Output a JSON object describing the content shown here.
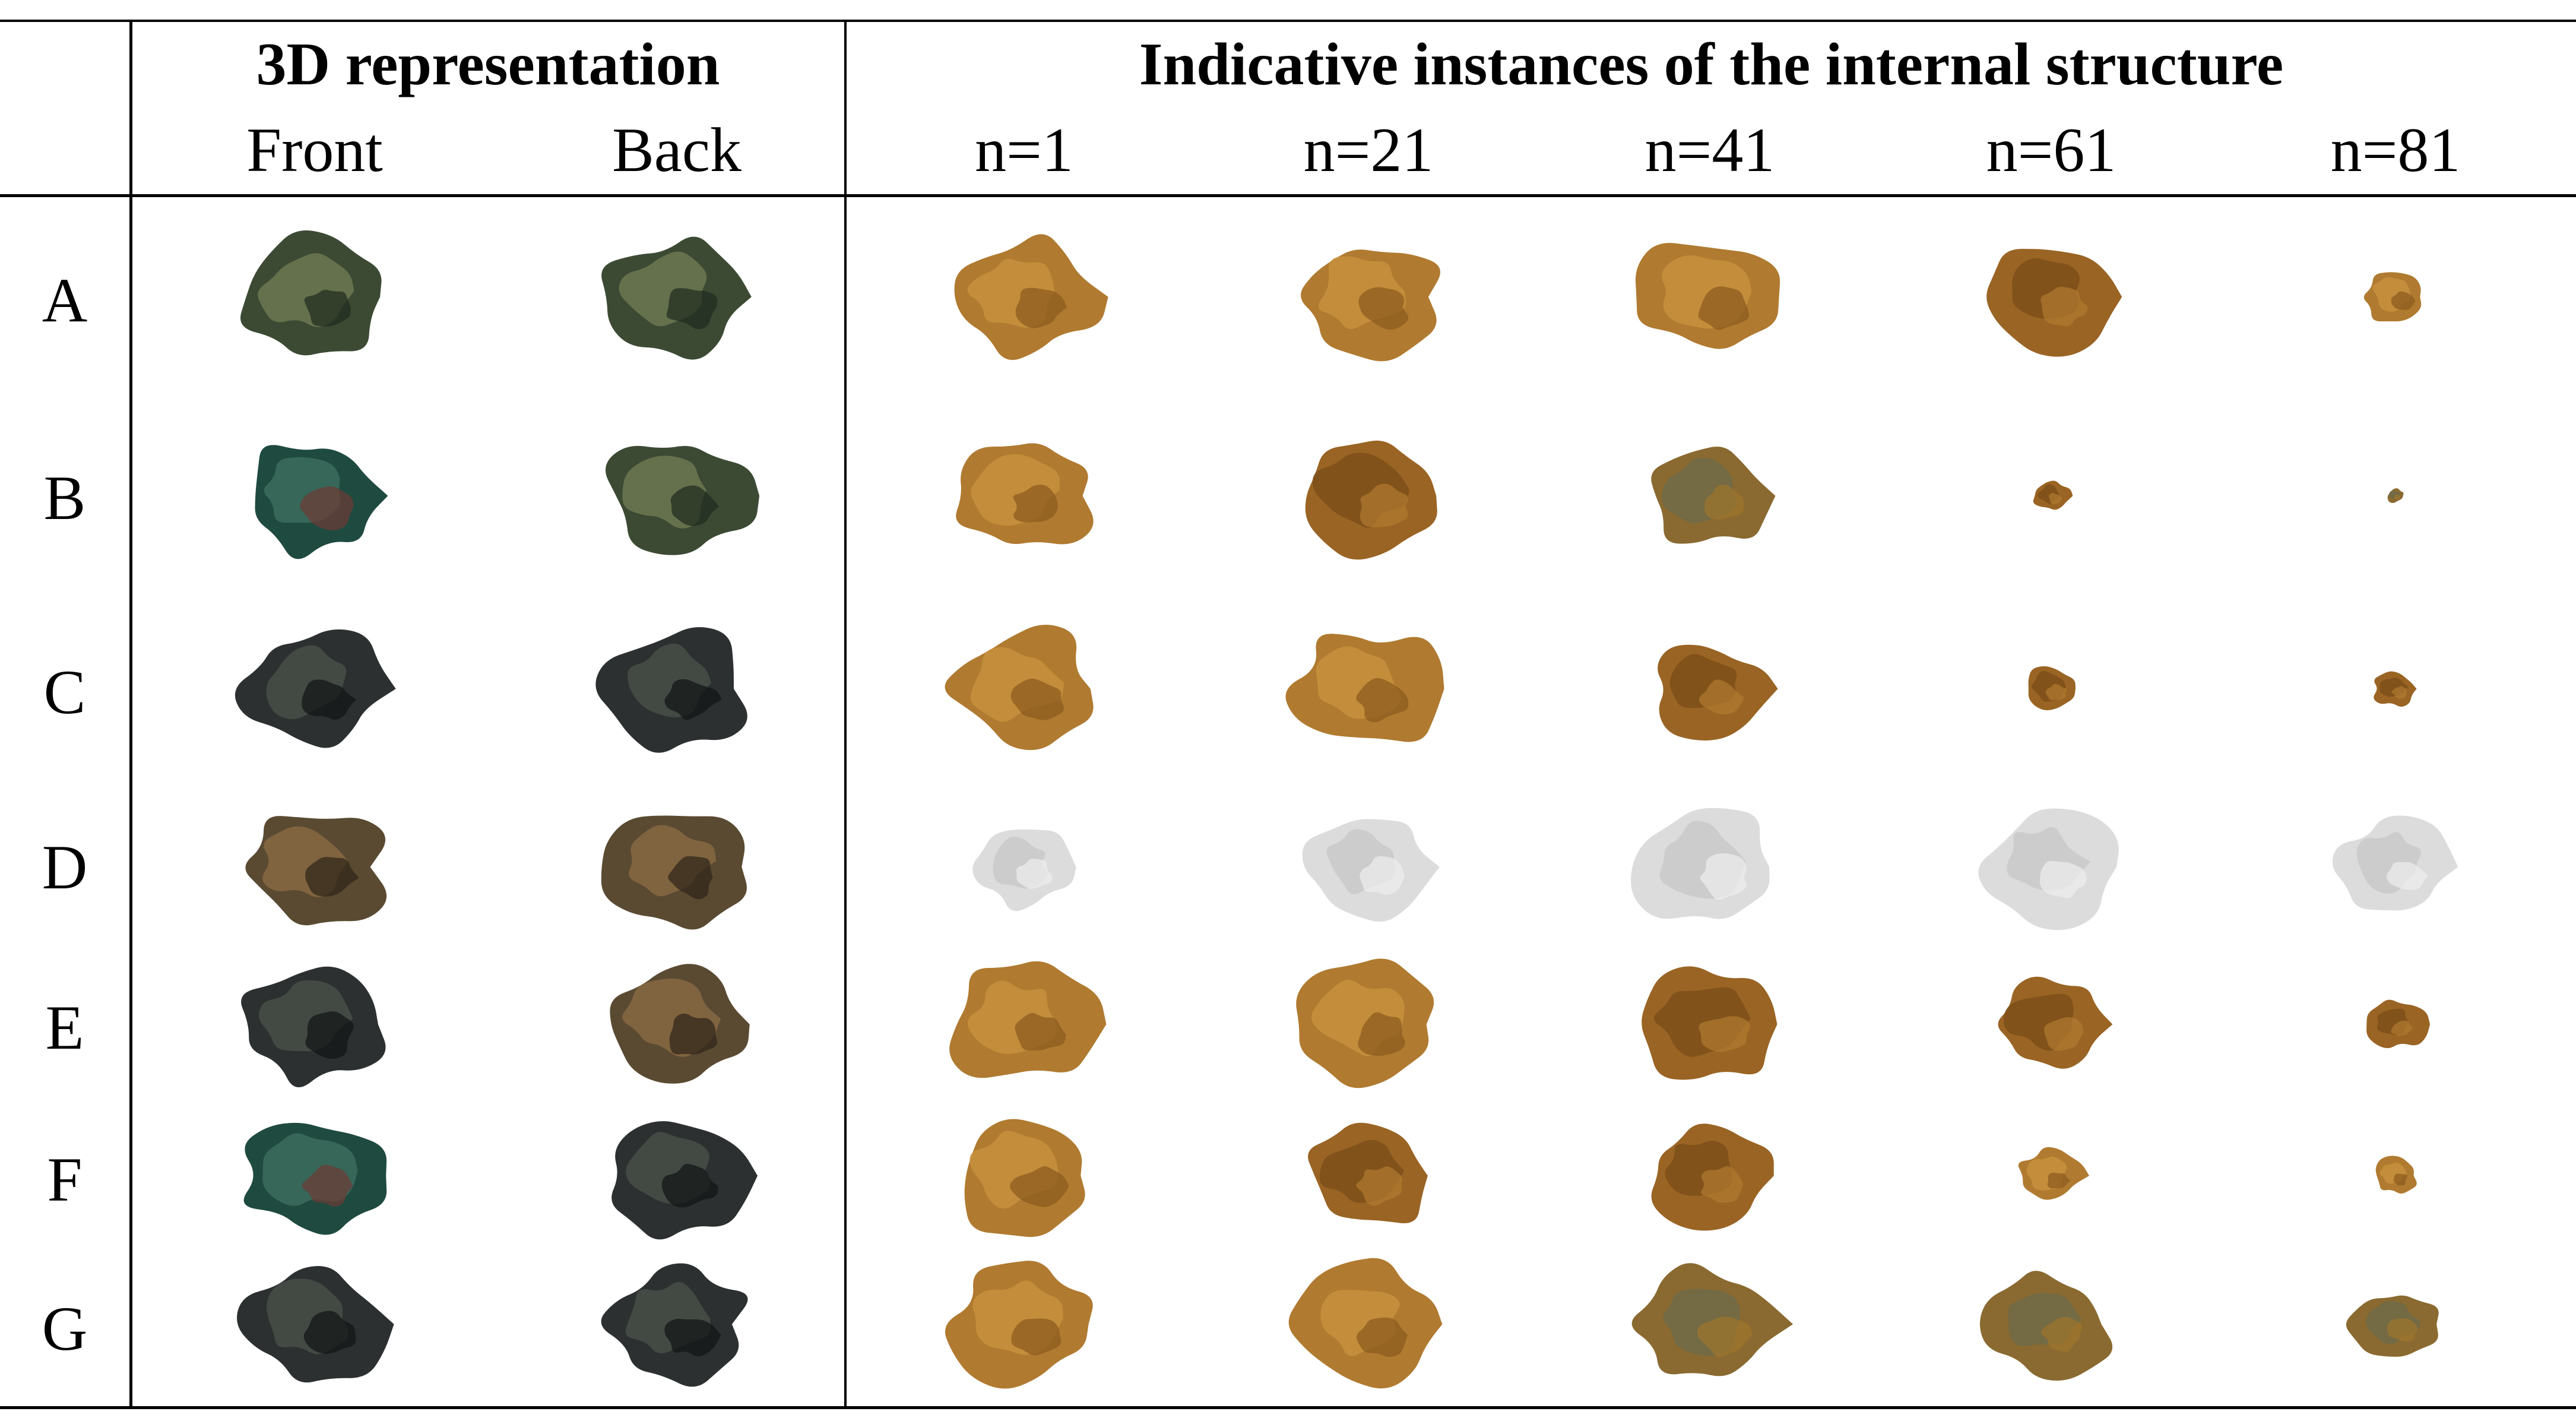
{
  "table": {
    "group_headers": {
      "representation": "3D representation",
      "instances": "Indicative instances of the internal structure"
    },
    "column_headers": [
      "Front",
      "Back",
      "n=1",
      "n=21",
      "n=41",
      "n=61",
      "n=81"
    ],
    "rows": [
      {
        "label": "A",
        "cells": [
          {
            "kind": "fragment-photo",
            "tone": "green-bronze",
            "coverage": 1.0
          },
          {
            "kind": "fragment-photo",
            "tone": "green-bronze",
            "coverage": 1.0
          },
          {
            "kind": "slice",
            "tone": "amber",
            "coverage": 1.0
          },
          {
            "kind": "slice",
            "tone": "amber",
            "coverage": 1.0
          },
          {
            "kind": "slice",
            "tone": "amber",
            "coverage": 1.0
          },
          {
            "kind": "slice",
            "tone": "amber-dark",
            "coverage": 0.9
          },
          {
            "kind": "slice",
            "tone": "amber",
            "coverage": 0.45
          }
        ]
      },
      {
        "label": "B",
        "cells": [
          {
            "kind": "fragment-photo",
            "tone": "teal-bronze",
            "coverage": 1.0
          },
          {
            "kind": "fragment-photo",
            "tone": "green-bronze",
            "coverage": 1.0
          },
          {
            "kind": "slice",
            "tone": "amber",
            "coverage": 1.0
          },
          {
            "kind": "slice",
            "tone": "amber-dark",
            "coverage": 1.0
          },
          {
            "kind": "slice",
            "tone": "olive",
            "coverage": 0.85
          },
          {
            "kind": "slice",
            "tone": "amber-dark",
            "coverage": 0.25
          },
          {
            "kind": "slice",
            "tone": "olive",
            "coverage": 0.12
          }
        ]
      },
      {
        "label": "C",
        "cells": [
          {
            "kind": "fragment-photo",
            "tone": "dark-bronze",
            "coverage": 1.0
          },
          {
            "kind": "fragment-photo",
            "tone": "dark-bronze",
            "coverage": 1.0
          },
          {
            "kind": "slice",
            "tone": "amber",
            "coverage": 1.0
          },
          {
            "kind": "slice",
            "tone": "amber",
            "coverage": 1.0
          },
          {
            "kind": "slice",
            "tone": "amber-dark",
            "coverage": 0.8
          },
          {
            "kind": "slice",
            "tone": "amber-dark",
            "coverage": 0.4
          },
          {
            "kind": "slice",
            "tone": "amber-dark",
            "coverage": 0.3
          }
        ]
      },
      {
        "label": "D",
        "cells": [
          {
            "kind": "fragment-photo",
            "tone": "brown-bronze",
            "coverage": 1.0
          },
          {
            "kind": "fragment-photo",
            "tone": "brown-bronze",
            "coverage": 1.0
          },
          {
            "kind": "slice",
            "tone": "pale-grey",
            "coverage": 0.7
          },
          {
            "kind": "slice",
            "tone": "pale-grey",
            "coverage": 0.85
          },
          {
            "kind": "slice",
            "tone": "pale-grey",
            "coverage": 1.0
          },
          {
            "kind": "slice",
            "tone": "pale-grey",
            "coverage": 0.95
          },
          {
            "kind": "slice",
            "tone": "pale-grey",
            "coverage": 0.8
          }
        ]
      },
      {
        "label": "E",
        "cells": [
          {
            "kind": "fragment-photo",
            "tone": "dark-bronze",
            "coverage": 1.0
          },
          {
            "kind": "fragment-photo",
            "tone": "brown-bronze",
            "coverage": 1.0
          },
          {
            "kind": "slice",
            "tone": "amber",
            "coverage": 1.0
          },
          {
            "kind": "slice",
            "tone": "amber",
            "coverage": 1.0
          },
          {
            "kind": "slice",
            "tone": "amber-dark",
            "coverage": 1.0
          },
          {
            "kind": "slice",
            "tone": "amber-dark",
            "coverage": 0.8
          },
          {
            "kind": "slice",
            "tone": "amber-dark",
            "coverage": 0.4
          }
        ]
      },
      {
        "label": "F",
        "cells": [
          {
            "kind": "fragment-photo",
            "tone": "teal-bronze",
            "coverage": 1.0
          },
          {
            "kind": "fragment-photo",
            "tone": "dark-bronze",
            "coverage": 1.0
          },
          {
            "kind": "slice",
            "tone": "amber",
            "coverage": 1.0
          },
          {
            "kind": "slice",
            "tone": "amber-dark",
            "coverage": 0.9
          },
          {
            "kind": "slice",
            "tone": "amber-dark",
            "coverage": 0.85
          },
          {
            "kind": "slice",
            "tone": "amber",
            "coverage": 0.45
          },
          {
            "kind": "slice",
            "tone": "amber",
            "coverage": 0.3
          }
        ]
      },
      {
        "label": "G",
        "cells": [
          {
            "kind": "fragment-photo",
            "tone": "dark-bronze",
            "coverage": 1.0
          },
          {
            "kind": "fragment-photo",
            "tone": "dark-bronze",
            "coverage": 1.0
          },
          {
            "kind": "slice",
            "tone": "amber",
            "coverage": 1.0
          },
          {
            "kind": "slice",
            "tone": "amber",
            "coverage": 1.0
          },
          {
            "kind": "slice",
            "tone": "olive",
            "coverage": 1.0
          },
          {
            "kind": "slice",
            "tone": "olive",
            "coverage": 0.85
          },
          {
            "kind": "slice",
            "tone": "olive",
            "coverage": 0.6
          }
        ]
      }
    ]
  },
  "tones": {
    "green-bronze": [
      "#3c4a34",
      "#6f7a52",
      "#1e2a1e"
    ],
    "teal-bronze": [
      "#1f4a40",
      "#3d6e5e",
      "#6e3a34"
    ],
    "dark-bronze": [
      "#2c3030",
      "#4a5048",
      "#101414"
    ],
    "brown-bronze": [
      "#5a4a32",
      "#8a6a44",
      "#2e2418"
    ],
    "amber": [
      "#b07a30",
      "#c8923e",
      "#8a5a1c"
    ],
    "amber-dark": [
      "#9a6424",
      "#7a4e18",
      "#b27a30"
    ],
    "olive": [
      "#8a6a30",
      "#6e6a4a",
      "#a0762c"
    ],
    "pale-grey": [
      "#dcdcdc",
      "#c8c8c8",
      "#eeeeee"
    ]
  }
}
